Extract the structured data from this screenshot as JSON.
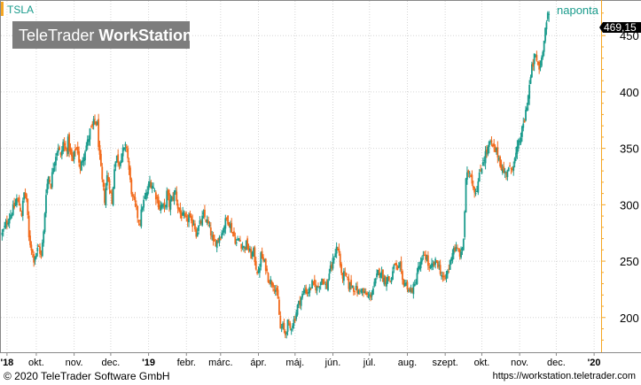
{
  "chart_data": {
    "type": "candlestick",
    "symbol": "TSLA",
    "period_label": "naponta",
    "watermark": {
      "part1": "TeleTrader ",
      "part2": "WorkStation"
    },
    "last_price_label": "469,15",
    "y_ticks": [
      200,
      250,
      300,
      350,
      400,
      450
    ],
    "ylim": [
      170,
      480
    ],
    "x_labels": [
      {
        "text": "'18",
        "bold": true,
        "day": 0
      },
      {
        "text": "okt.",
        "bold": false,
        "day": 24
      },
      {
        "text": "nov.",
        "bold": false,
        "day": 55
      },
      {
        "text": "dec.",
        "bold": false,
        "day": 85
      },
      {
        "text": "'19",
        "bold": true,
        "day": 116
      },
      {
        "text": "febr.",
        "bold": false,
        "day": 147
      },
      {
        "text": "márc.",
        "bold": false,
        "day": 175
      },
      {
        "text": "ápr.",
        "bold": false,
        "day": 206
      },
      {
        "text": "máj.",
        "bold": false,
        "day": 236
      },
      {
        "text": "jún.",
        "bold": false,
        "day": 267
      },
      {
        "text": "júl.",
        "bold": false,
        "day": 297
      },
      {
        "text": "aug.",
        "bold": false,
        "day": 328
      },
      {
        "text": "szept.",
        "bold": false,
        "day": 359
      },
      {
        "text": "okt.",
        "bold": false,
        "day": 389
      },
      {
        "text": "nov.",
        "bold": false,
        "day": 420
      },
      {
        "text": "dec.",
        "bold": false,
        "day": 450
      },
      {
        "text": "'20",
        "bold": true,
        "day": 481
      }
    ],
    "x_day_range": [
      -5,
      486
    ],
    "colors": {
      "up": "#1a9b8c",
      "down": "#f26a1b",
      "accent": "#f5a623",
      "label_bg": "#000000"
    },
    "closes": [
      [
        -4,
        274
      ],
      [
        0,
        285
      ],
      [
        3,
        292
      ],
      [
        6,
        298
      ],
      [
        8,
        305
      ],
      [
        10,
        300
      ],
      [
        12,
        292
      ],
      [
        14,
        310
      ],
      [
        16,
        305
      ],
      [
        18,
        270
      ],
      [
        20,
        262
      ],
      [
        22,
        252
      ],
      [
        24,
        258
      ],
      [
        26,
        262
      ],
      [
        28,
        255
      ],
      [
        30,
        275
      ],
      [
        32,
        312
      ],
      [
        34,
        325
      ],
      [
        36,
        318
      ],
      [
        38,
        335
      ],
      [
        40,
        345
      ],
      [
        42,
        352
      ],
      [
        44,
        342
      ],
      [
        46,
        355
      ],
      [
        48,
        348
      ],
      [
        50,
        356
      ],
      [
        52,
        345
      ],
      [
        54,
        338
      ],
      [
        56,
        350
      ],
      [
        58,
        348
      ],
      [
        60,
        330
      ],
      [
        62,
        342
      ],
      [
        64,
        350
      ],
      [
        66,
        355
      ],
      [
        68,
        365
      ],
      [
        70,
        368
      ],
      [
        72,
        375
      ],
      [
        74,
        370
      ],
      [
        76,
        340
      ],
      [
        78,
        320
      ],
      [
        80,
        305
      ],
      [
        82,
        325
      ],
      [
        84,
        318
      ],
      [
        86,
        300
      ],
      [
        88,
        335
      ],
      [
        90,
        342
      ],
      [
        92,
        338
      ],
      [
        94,
        346
      ],
      [
        96,
        348
      ],
      [
        98,
        352
      ],
      [
        101,
        320
      ],
      [
        103,
        305
      ],
      [
        105,
        300
      ],
      [
        107,
        290
      ],
      [
        109,
        285
      ],
      [
        111,
        300
      ],
      [
        113,
        305
      ],
      [
        115,
        312
      ],
      [
        117,
        320
      ],
      [
        119,
        318
      ],
      [
        121,
        312
      ],
      [
        123,
        305
      ],
      [
        125,
        298
      ],
      [
        127,
        300
      ],
      [
        129,
        295
      ],
      [
        131,
        310
      ],
      [
        133,
        300
      ],
      [
        135,
        305
      ],
      [
        138,
        312
      ],
      [
        140,
        298
      ],
      [
        142,
        292
      ],
      [
        145,
        288
      ],
      [
        147,
        285
      ],
      [
        149,
        290
      ],
      [
        151,
        282
      ],
      [
        153,
        285
      ],
      [
        155,
        275
      ],
      [
        157,
        280
      ],
      [
        159,
        285
      ],
      [
        161,
        290
      ],
      [
        163,
        287
      ],
      [
        165,
        282
      ],
      [
        167,
        275
      ],
      [
        169,
        265
      ],
      [
        172,
        268
      ],
      [
        174,
        272
      ],
      [
        176,
        275
      ],
      [
        178,
        282
      ],
      [
        180,
        288
      ],
      [
        182,
        285
      ],
      [
        184,
        278
      ],
      [
        186,
        272
      ],
      [
        188,
        266
      ],
      [
        190,
        270
      ],
      [
        192,
        265
      ],
      [
        194,
        262
      ],
      [
        196,
        265
      ],
      [
        198,
        260
      ],
      [
        200,
        255
      ],
      [
        202,
        258
      ],
      [
        204,
        245
      ],
      [
        206,
        238
      ],
      [
        208,
        255
      ],
      [
        210,
        250
      ],
      [
        212,
        245
      ],
      [
        214,
        235
      ],
      [
        216,
        232
      ],
      [
        218,
        230
      ],
      [
        220,
        225
      ],
      [
        222,
        215
      ],
      [
        224,
        190
      ],
      [
        226,
        192
      ],
      [
        228,
        185
      ],
      [
        230,
        195
      ],
      [
        232,
        190
      ],
      [
        234,
        195
      ],
      [
        236,
        200
      ],
      [
        238,
        210
      ],
      [
        240,
        215
      ],
      [
        242,
        220
      ],
      [
        244,
        225
      ],
      [
        246,
        222
      ],
      [
        248,
        225
      ],
      [
        250,
        230
      ],
      [
        252,
        228
      ],
      [
        254,
        226
      ],
      [
        256,
        230
      ],
      [
        258,
        235
      ],
      [
        260,
        230
      ],
      [
        262,
        227
      ],
      [
        264,
        240
      ],
      [
        266,
        245
      ],
      [
        268,
        255
      ],
      [
        270,
        262
      ],
      [
        272,
        258
      ],
      [
        274,
        236
      ],
      [
        276,
        238
      ],
      [
        278,
        236
      ],
      [
        280,
        228
      ],
      [
        282,
        230
      ],
      [
        284,
        226
      ],
      [
        286,
        225
      ],
      [
        288,
        222
      ],
      [
        290,
        226
      ],
      [
        292,
        222
      ],
      [
        294,
        220
      ],
      [
        296,
        218
      ],
      [
        298,
        220
      ],
      [
        300,
        226
      ],
      [
        302,
        232
      ],
      [
        304,
        240
      ],
      [
        306,
        242
      ],
      [
        308,
        235
      ],
      [
        310,
        233
      ],
      [
        312,
        235
      ],
      [
        314,
        232
      ],
      [
        316,
        240
      ],
      [
        318,
        248
      ],
      [
        320,
        240
      ],
      [
        322,
        245
      ],
      [
        324,
        232
      ],
      [
        326,
        231
      ],
      [
        328,
        228
      ],
      [
        330,
        222
      ],
      [
        332,
        225
      ],
      [
        334,
        228
      ],
      [
        336,
        240
      ],
      [
        338,
        246
      ],
      [
        340,
        250
      ],
      [
        342,
        256
      ],
      [
        344,
        252
      ],
      [
        346,
        242
      ],
      [
        348,
        245
      ],
      [
        350,
        247
      ],
      [
        352,
        250
      ],
      [
        354,
        245
      ],
      [
        356,
        238
      ],
      [
        358,
        232
      ],
      [
        360,
        238
      ],
      [
        362,
        244
      ],
      [
        364,
        255
      ],
      [
        366,
        262
      ],
      [
        368,
        260
      ],
      [
        370,
        258
      ],
      [
        372,
        255
      ],
      [
        374,
        270
      ],
      [
        376,
        320
      ],
      [
        378,
        330
      ],
      [
        380,
        328
      ],
      [
        382,
        316
      ],
      [
        384,
        312
      ],
      [
        386,
        320
      ],
      [
        388,
        330
      ],
      [
        390,
        340
      ],
      [
        392,
        345
      ],
      [
        394,
        350
      ],
      [
        396,
        355
      ],
      [
        398,
        350
      ],
      [
        400,
        348
      ],
      [
        402,
        345
      ],
      [
        404,
        338
      ],
      [
        406,
        330
      ],
      [
        408,
        328
      ],
      [
        410,
        332
      ],
      [
        412,
        330
      ],
      [
        414,
        335
      ],
      [
        416,
        340
      ],
      [
        418,
        348
      ],
      [
        420,
        358
      ],
      [
        422,
        365
      ],
      [
        424,
        375
      ],
      [
        426,
        390
      ],
      [
        428,
        405
      ],
      [
        430,
        420
      ],
      [
        432,
        430
      ],
      [
        434,
        428
      ],
      [
        436,
        420
      ],
      [
        438,
        430
      ],
      [
        440,
        450
      ],
      [
        442,
        462
      ],
      [
        444,
        469.15
      ]
    ]
  }
}
